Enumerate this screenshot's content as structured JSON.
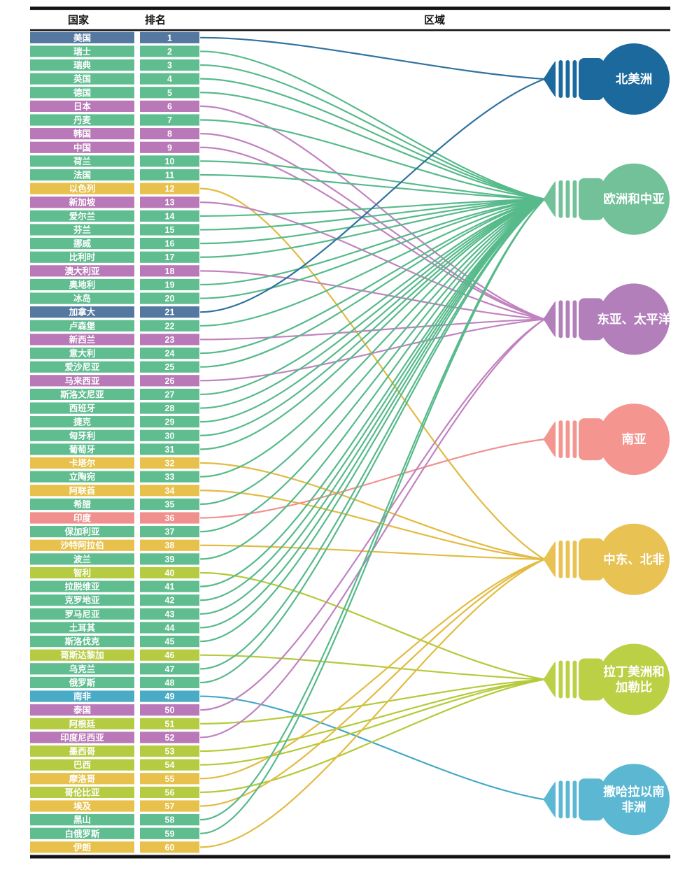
{
  "header": {
    "country": "国家",
    "rank": "排名",
    "region": "区域"
  },
  "chart_data": {
    "type": "table",
    "columns": [
      "国家",
      "排名",
      "区域"
    ],
    "regions": [
      {
        "id": "north-america",
        "label": "北美洲",
        "label_lines": [
          "北美洲"
        ],
        "row_color": "#54789f",
        "line_color": "#30719f",
        "bulb_color": "#1b699d"
      },
      {
        "id": "europe-central-asia",
        "label": "欧洲和中亚",
        "label_lines": [
          "欧洲和中亚"
        ],
        "row_color": "#5fbd90",
        "line_color": "#57ba8b",
        "bulb_color": "#72c198"
      },
      {
        "id": "east-asia-pacific",
        "label": "东亚、太平洋",
        "label_lines": [
          "东亚、太平洋"
        ],
        "row_color": "#b978b7",
        "line_color": "#c182c0",
        "bulb_color": "#b27fbb"
      },
      {
        "id": "south-asia",
        "label": "南亚",
        "label_lines": [
          "南亚"
        ],
        "row_color": "#f0908e",
        "line_color": "#f0918e",
        "bulb_color": "#f4958f"
      },
      {
        "id": "middle-east-north-africa",
        "label": "中东、北非",
        "label_lines": [
          "中东、北非"
        ],
        "row_color": "#e7c14b",
        "line_color": "#e2bb41",
        "bulb_color": "#e8c253"
      },
      {
        "id": "latin-america-caribbean",
        "label": "拉丁美洲和加勒比",
        "label_lines": [
          "拉丁美洲和",
          "加勒比"
        ],
        "row_color": "#b5cc42",
        "line_color": "#b5ca39",
        "bulb_color": "#bcd046"
      },
      {
        "id": "sub-saharan-africa",
        "label": "撒哈拉以南非洲",
        "label_lines": [
          "撒哈拉以南",
          "非洲"
        ],
        "row_color": "#4aabc6",
        "line_color": "#43a8c6",
        "bulb_color": "#5cb8d2"
      }
    ],
    "countries": [
      {
        "rank": 1,
        "name": "美国",
        "region": "north-america"
      },
      {
        "rank": 2,
        "name": "瑞士",
        "region": "europe-central-asia"
      },
      {
        "rank": 3,
        "name": "瑞典",
        "region": "europe-central-asia"
      },
      {
        "rank": 4,
        "name": "英国",
        "region": "europe-central-asia"
      },
      {
        "rank": 5,
        "name": "德国",
        "region": "europe-central-asia"
      },
      {
        "rank": 6,
        "name": "日本",
        "region": "east-asia-pacific"
      },
      {
        "rank": 7,
        "name": "丹麦",
        "region": "europe-central-asia"
      },
      {
        "rank": 8,
        "name": "韩国",
        "region": "east-asia-pacific"
      },
      {
        "rank": 9,
        "name": "中国",
        "region": "east-asia-pacific"
      },
      {
        "rank": 10,
        "name": "荷兰",
        "region": "europe-central-asia"
      },
      {
        "rank": 11,
        "name": "法国",
        "region": "europe-central-asia"
      },
      {
        "rank": 12,
        "name": "以色列",
        "region": "middle-east-north-africa"
      },
      {
        "rank": 13,
        "name": "新加坡",
        "region": "east-asia-pacific"
      },
      {
        "rank": 14,
        "name": "爱尔兰",
        "region": "europe-central-asia"
      },
      {
        "rank": 15,
        "name": "芬兰",
        "region": "europe-central-asia"
      },
      {
        "rank": 16,
        "name": "挪威",
        "region": "europe-central-asia"
      },
      {
        "rank": 17,
        "name": "比利时",
        "region": "europe-central-asia"
      },
      {
        "rank": 18,
        "name": "澳大利亚",
        "region": "east-asia-pacific"
      },
      {
        "rank": 19,
        "name": "奥地利",
        "region": "europe-central-asia"
      },
      {
        "rank": 20,
        "name": "冰岛",
        "region": "europe-central-asia"
      },
      {
        "rank": 21,
        "name": "加拿大",
        "region": "north-america"
      },
      {
        "rank": 22,
        "name": "卢森堡",
        "region": "europe-central-asia"
      },
      {
        "rank": 23,
        "name": "新西兰",
        "region": "east-asia-pacific"
      },
      {
        "rank": 24,
        "name": "意大利",
        "region": "europe-central-asia"
      },
      {
        "rank": 25,
        "name": "爱沙尼亚",
        "region": "europe-central-asia"
      },
      {
        "rank": 26,
        "name": "马来西亚",
        "region": "east-asia-pacific"
      },
      {
        "rank": 27,
        "name": "斯洛文尼亚",
        "region": "europe-central-asia"
      },
      {
        "rank": 28,
        "name": "西班牙",
        "region": "europe-central-asia"
      },
      {
        "rank": 29,
        "name": "捷克",
        "region": "europe-central-asia"
      },
      {
        "rank": 30,
        "name": "匈牙利",
        "region": "europe-central-asia"
      },
      {
        "rank": 31,
        "name": "葡萄牙",
        "region": "europe-central-asia"
      },
      {
        "rank": 32,
        "name": "卡塔尔",
        "region": "middle-east-north-africa"
      },
      {
        "rank": 33,
        "name": "立陶宛",
        "region": "europe-central-asia"
      },
      {
        "rank": 34,
        "name": "阿联酋",
        "region": "middle-east-north-africa"
      },
      {
        "rank": 35,
        "name": "希腊",
        "region": "europe-central-asia"
      },
      {
        "rank": 36,
        "name": "印度",
        "region": "south-asia"
      },
      {
        "rank": 37,
        "name": "保加利亚",
        "region": "europe-central-asia"
      },
      {
        "rank": 38,
        "name": "沙特阿拉伯",
        "region": "middle-east-north-africa"
      },
      {
        "rank": 39,
        "name": "波兰",
        "region": "europe-central-asia"
      },
      {
        "rank": 40,
        "name": "智利",
        "region": "latin-america-caribbean"
      },
      {
        "rank": 41,
        "name": "拉脱维亚",
        "region": "europe-central-asia"
      },
      {
        "rank": 42,
        "name": "克罗地亚",
        "region": "europe-central-asia"
      },
      {
        "rank": 43,
        "name": "罗马尼亚",
        "region": "europe-central-asia"
      },
      {
        "rank": 44,
        "name": "土耳其",
        "region": "europe-central-asia"
      },
      {
        "rank": 45,
        "name": "斯洛伐克",
        "region": "europe-central-asia"
      },
      {
        "rank": 46,
        "name": "哥斯达黎加",
        "region": "latin-america-caribbean"
      },
      {
        "rank": 47,
        "name": "乌克兰",
        "region": "europe-central-asia"
      },
      {
        "rank": 48,
        "name": "俄罗斯",
        "region": "europe-central-asia"
      },
      {
        "rank": 49,
        "name": "南非",
        "region": "sub-saharan-africa"
      },
      {
        "rank": 50,
        "name": "泰国",
        "region": "east-asia-pacific"
      },
      {
        "rank": 51,
        "name": "阿根廷",
        "region": "latin-america-caribbean"
      },
      {
        "rank": 52,
        "name": "印度尼西亚",
        "region": "east-asia-pacific"
      },
      {
        "rank": 53,
        "name": "墨西哥",
        "region": "latin-america-caribbean"
      },
      {
        "rank": 54,
        "name": "巴西",
        "region": "latin-america-caribbean"
      },
      {
        "rank": 55,
        "name": "摩洛哥",
        "region": "middle-east-north-africa"
      },
      {
        "rank": 56,
        "name": "哥伦比亚",
        "region": "latin-america-caribbean"
      },
      {
        "rank": 57,
        "name": "埃及",
        "region": "middle-east-north-africa"
      },
      {
        "rank": 58,
        "name": "黑山",
        "region": "europe-central-asia"
      },
      {
        "rank": 59,
        "name": "白俄罗斯",
        "region": "europe-central-asia"
      },
      {
        "rank": 60,
        "name": "伊朗",
        "region": "middle-east-north-africa"
      }
    ]
  }
}
